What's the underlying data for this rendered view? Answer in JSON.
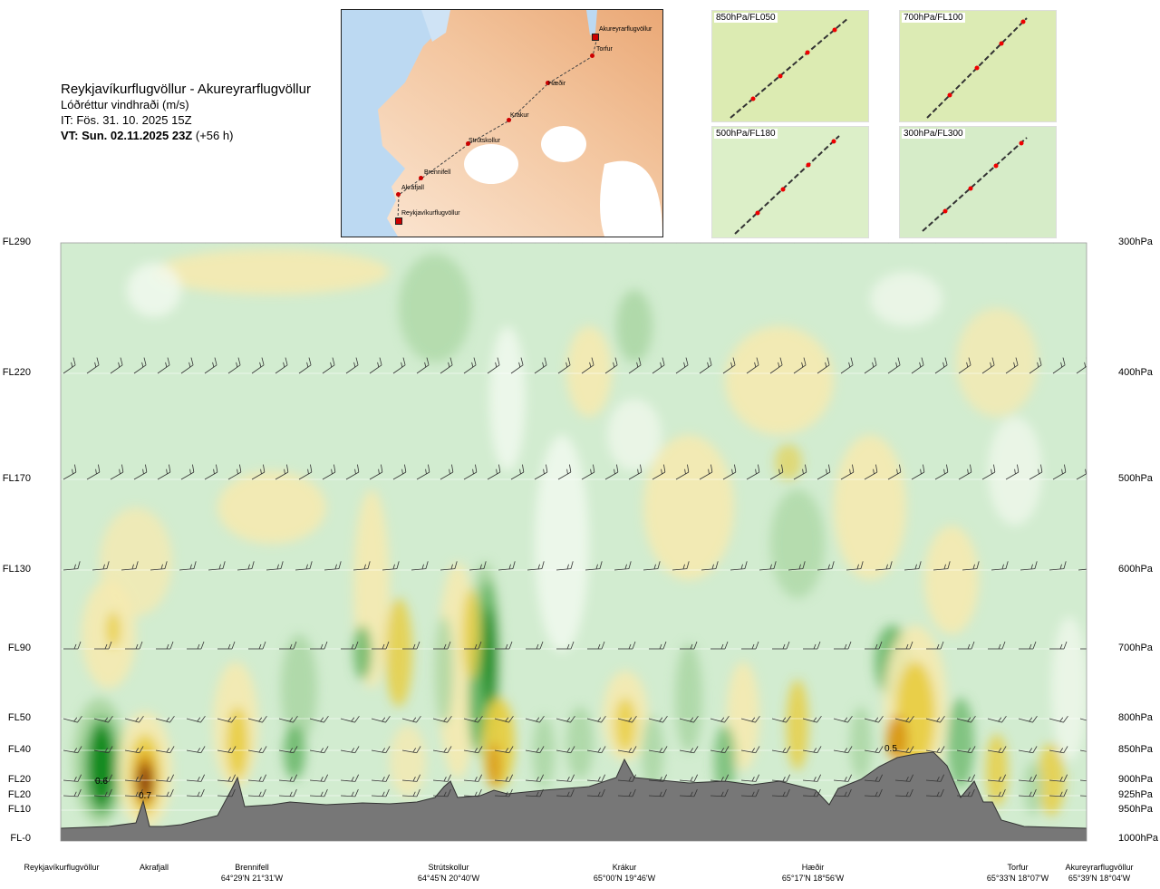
{
  "header": {
    "route": "Reykjavíkurflugvöllur - Akureyrarflugvöllur",
    "subtitle": "Lóðréttur vindhraði (m/s)",
    "it": "IT: Fös. 31. 10. 2025 15Z",
    "vt_bold": "VT: Sun. 02.11.2025 23Z",
    "vt_offset": "(+56 h)"
  },
  "map": {
    "points": [
      "Akureyrarflugvöllur",
      "Torfur",
      "Hæðir",
      "Krákur",
      "Strútskollur",
      "Brennifell",
      "Akrafjall",
      "Reykjavíkurflugvöllur"
    ]
  },
  "minimaps": [
    {
      "label": "850hPa/FL050"
    },
    {
      "label": "700hPa/FL100"
    },
    {
      "label": "500hPa/FL180"
    },
    {
      "label": "300hPa/FL300"
    }
  ],
  "levels": [
    {
      "fl": "FL290",
      "hpa": "300hPa"
    },
    {
      "fl": "FL220",
      "hpa": "400hPa"
    },
    {
      "fl": "FL170",
      "hpa": "500hPa"
    },
    {
      "fl": "FL130",
      "hpa": "600hPa"
    },
    {
      "fl": "FL90",
      "hpa": "700hPa"
    },
    {
      "fl": "FL50",
      "hpa": "800hPa"
    },
    {
      "fl": "FL40",
      "hpa": "850hPa"
    },
    {
      "fl": "FL20",
      "hpa": "900hPa"
    },
    {
      "fl": "FL20",
      "hpa": "925hPa"
    },
    {
      "fl": "FL10",
      "hpa": "950hPa"
    },
    {
      "fl": "FL-0",
      "hpa": "1000hPa"
    }
  ],
  "stations": [
    {
      "name": "Reykjavíkurflugvöllur",
      "coord": ""
    },
    {
      "name": "Akrafjall",
      "coord": ""
    },
    {
      "name": "Brennifell",
      "coord": "64°29'N 21°31'W"
    },
    {
      "name": "Strútskollur",
      "coord": "64°45'N 20°40'W"
    },
    {
      "name": "Krákur",
      "coord": "65°00'N 19°46'W"
    },
    {
      "name": "Hæðir",
      "coord": "65°17'N 18°56'W"
    },
    {
      "name": "Torfur",
      "coord": "65°33'N 18°07'W"
    },
    {
      "name": "Akureyrarflugvöllur",
      "coord": "65°39'N 18°04'W"
    }
  ],
  "annotations": [
    "0.6",
    "0.7",
    "0.5"
  ],
  "colors": {
    "up_strong": "#0a8a1a",
    "up_mid": "#5fb25f",
    "up_weak": "#a8d5a0",
    "base": "#d2ecd0",
    "near_zero": "#f3faf0",
    "down_weak": "#f5eab0",
    "down_mid": "#e8cc3c",
    "down_strong": "#d99a18",
    "down_max": "#8c3a10",
    "terrain": "#777777"
  },
  "chart_data": {
    "type": "heatmap",
    "title": "Lóðréttur vindhraði (m/s)",
    "y_levels_hpa": [
      300,
      400,
      500,
      600,
      700,
      800,
      850,
      900,
      925,
      950,
      1000
    ],
    "x_stations": [
      "Reykjavíkurflugvöllur",
      "Akrafjall",
      "Brennifell",
      "Strútskollur",
      "Krákur",
      "Hæðir",
      "Torfur",
      "Akureyrarflugvöllur"
    ],
    "labeled_extrema": [
      {
        "station": "Reykjavíkurflugvöllur",
        "value": 0.6
      },
      {
        "station": "Akrafjall",
        "value": 0.7
      },
      {
        "station": "Hæðir",
        "value": 0.5
      }
    ],
    "grid": true
  }
}
